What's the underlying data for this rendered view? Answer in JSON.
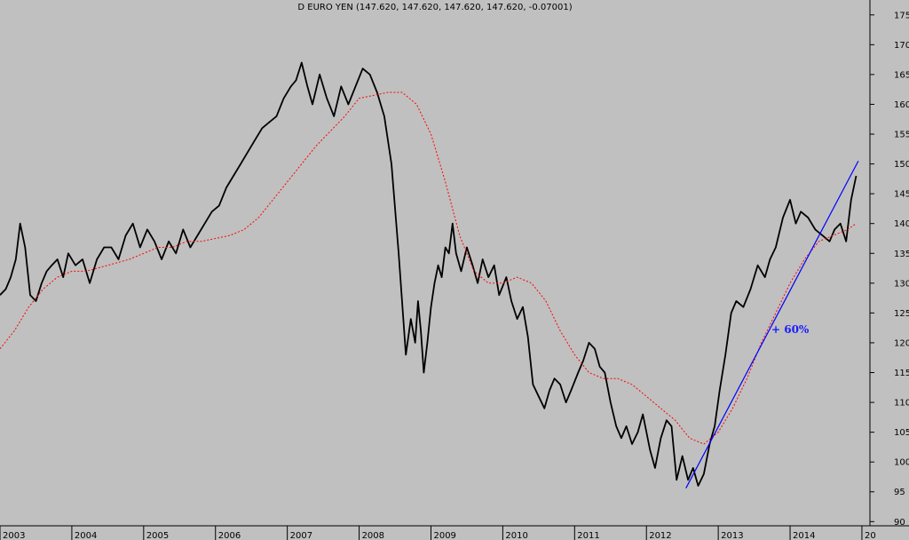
{
  "chart_data": {
    "type": "line",
    "title": "D EURO YEN (147.620, 147.620, 147.620, 147.620, -0.07001)",
    "xlabel": "",
    "ylabel": "",
    "x_tick_labels": [
      "2003",
      "2004",
      "2005",
      "2006",
      "2007",
      "2008",
      "2009",
      "2010",
      "2011",
      "2012",
      "2013",
      "2014",
      "20"
    ],
    "y_ticks": [
      90,
      95,
      100,
      105,
      110,
      115,
      120,
      125,
      130,
      135,
      140,
      145,
      150,
      155,
      160,
      165,
      170,
      175
    ],
    "xlim": [
      2003.0,
      2015.05
    ],
    "ylim": [
      89.3,
      177.5
    ],
    "grid": false,
    "annotation": "+ 60%",
    "colors": {
      "price": "#000000",
      "moving_average": "#ff0000",
      "trendline": "#0000ff",
      "annotation": "#1a1aff",
      "background": "#c0c0c0"
    },
    "series": [
      {
        "style": "solid",
        "x": [
          2003.0,
          2003.08,
          2003.15,
          2003.22,
          2003.28,
          2003.35,
          2003.42,
          2003.5,
          2003.58,
          2003.65,
          2003.72,
          2003.8,
          2003.88,
          2003.95,
          2004.05,
          2004.15,
          2004.25,
          2004.35,
          2004.45,
          2004.55,
          2004.65,
          2004.75,
          2004.85,
          2004.95,
          2005.05,
          2005.15,
          2005.25,
          2005.35,
          2005.45,
          2005.55,
          2005.65,
          2005.75,
          2005.85,
          2005.95,
          2006.05,
          2006.15,
          2006.25,
          2006.35,
          2006.45,
          2006.55,
          2006.65,
          2006.75,
          2006.85,
          2006.95,
          2007.05,
          2007.12,
          2007.2,
          2007.28,
          2007.35,
          2007.45,
          2007.55,
          2007.65,
          2007.75,
          2007.85,
          2007.95,
          2008.05,
          2008.15,
          2008.25,
          2008.35,
          2008.45,
          2008.55,
          2008.65,
          2008.72,
          2008.78,
          2008.82,
          2008.86,
          2008.9,
          2008.95,
          2009.0,
          2009.05,
          2009.1,
          2009.15,
          2009.2,
          2009.25,
          2009.3,
          2009.35,
          2009.42,
          2009.5,
          2009.58,
          2009.65,
          2009.72,
          2009.8,
          2009.88,
          2009.95,
          2010.05,
          2010.12,
          2010.2,
          2010.28,
          2010.35,
          2010.42,
          2010.5,
          2010.58,
          2010.65,
          2010.72,
          2010.8,
          2010.88,
          2010.95,
          2011.05,
          2011.12,
          2011.2,
          2011.28,
          2011.35,
          2011.42,
          2011.5,
          2011.58,
          2011.65,
          2011.72,
          2011.8,
          2011.88,
          2011.95,
          2012.05,
          2012.12,
          2012.2,
          2012.28,
          2012.35,
          2012.42,
          2012.5,
          2012.58,
          2012.65,
          2012.72,
          2012.8,
          2012.88,
          2012.95,
          2013.02,
          2013.1,
          2013.18,
          2013.25,
          2013.35,
          2013.45,
          2013.55,
          2013.65,
          2013.72,
          2013.8,
          2013.9,
          2014.0,
          2014.08,
          2014.15,
          2014.25,
          2014.35,
          2014.45,
          2014.55,
          2014.62,
          2014.7,
          2014.78,
          2014.85,
          2014.92
        ],
        "y": [
          128,
          129,
          131,
          134,
          140,
          136,
          128,
          127,
          130,
          132,
          133,
          134,
          131,
          135,
          133,
          134,
          130,
          134,
          136,
          136,
          134,
          138,
          140,
          136,
          139,
          137,
          134,
          137,
          135,
          139,
          136,
          138,
          140,
          142,
          143,
          146,
          148,
          150,
          152,
          154,
          156,
          157,
          158,
          161,
          163,
          164,
          167,
          163,
          160,
          165,
          161,
          158,
          163,
          160,
          163,
          166,
          165,
          162,
          158,
          150,
          135,
          118,
          124,
          120,
          127,
          122,
          115,
          120,
          126,
          130,
          133,
          131,
          136,
          135,
          140,
          135,
          132,
          136,
          133,
          130,
          134,
          131,
          133,
          128,
          131,
          127,
          124,
          126,
          121,
          113,
          111,
          109,
          112,
          114,
          113,
          110,
          112,
          115,
          117,
          120,
          119,
          116,
          115,
          110,
          106,
          104,
          106,
          103,
          105,
          108,
          102,
          99,
          104,
          107,
          106,
          97,
          101,
          97,
          99,
          96,
          98,
          103,
          106,
          112,
          118,
          125,
          127,
          126,
          129,
          133,
          131,
          134,
          136,
          141,
          144,
          140,
          142,
          141,
          139,
          138,
          137,
          139,
          140,
          137,
          144,
          148
        ]
      },
      {
        "style": "dotted",
        "x": [
          2003.0,
          2003.2,
          2003.4,
          2003.6,
          2003.8,
          2004.0,
          2004.2,
          2004.5,
          2004.8,
          2005.0,
          2005.2,
          2005.4,
          2005.6,
          2005.8,
          2006.0,
          2006.2,
          2006.4,
          2006.6,
          2006.8,
          2007.0,
          2007.2,
          2007.4,
          2007.6,
          2007.8,
          2008.0,
          2008.2,
          2008.4,
          2008.6,
          2008.8,
          2009.0,
          2009.2,
          2009.4,
          2009.6,
          2009.8,
          2010.0,
          2010.2,
          2010.4,
          2010.6,
          2010.8,
          2011.0,
          2011.2,
          2011.4,
          2011.6,
          2011.8,
          2012.0,
          2012.2,
          2012.4,
          2012.6,
          2012.8,
          2013.0,
          2013.2,
          2013.4,
          2013.6,
          2013.8,
          2014.0,
          2014.2,
          2014.4,
          2014.6,
          2014.8,
          2014.92
        ],
        "y": [
          119,
          122,
          126,
          129,
          131,
          132,
          132,
          133,
          134,
          135,
          136,
          136,
          137,
          137,
          137.5,
          138,
          139,
          141,
          144,
          147,
          150,
          153,
          155.5,
          158,
          161,
          161.5,
          162,
          162,
          160,
          155,
          147,
          138,
          132,
          130,
          130,
          131,
          130,
          127,
          122,
          118,
          115,
          114,
          114,
          113,
          111,
          109,
          107,
          104,
          103,
          105,
          109,
          114,
          120,
          125,
          130,
          134,
          137,
          138,
          139,
          140
        ]
      }
    ],
    "trendline": {
      "x": [
        2012.55,
        2014.95
      ],
      "y": [
        95.6,
        150.5
      ]
    }
  }
}
